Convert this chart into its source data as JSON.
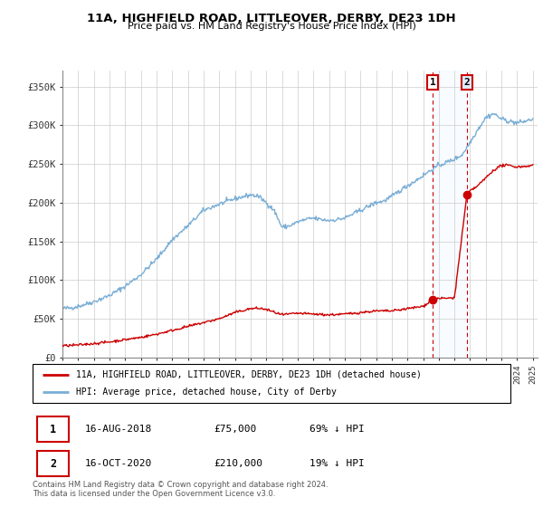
{
  "title": "11A, HIGHFIELD ROAD, LITTLEOVER, DERBY, DE23 1DH",
  "subtitle": "Price paid vs. HM Land Registry's House Price Index (HPI)",
  "ylabel_ticks": [
    "£0",
    "£50K",
    "£100K",
    "£150K",
    "£200K",
    "£250K",
    "£300K",
    "£350K"
  ],
  "ytick_values": [
    0,
    50000,
    100000,
    150000,
    200000,
    250000,
    300000,
    350000
  ],
  "ylim": [
    0,
    370000
  ],
  "hpi_color": "#7aaed6",
  "price_color": "#cc0000",
  "marker_color": "#cc0000",
  "shade_color": "#ddeeff",
  "legend_label_price": "11A, HIGHFIELD ROAD, LITTLEOVER, DERBY, DE23 1DH (detached house)",
  "legend_label_hpi": "HPI: Average price, detached house, City of Derby",
  "transaction1_date": "16-AUG-2018",
  "transaction1_price": "£75,000",
  "transaction1_pct": "69% ↓ HPI",
  "transaction1_year": 2018.625,
  "transaction1_value": 75000,
  "transaction2_date": "16-OCT-2020",
  "transaction2_price": "£210,000",
  "transaction2_pct": "19% ↓ HPI",
  "transaction2_year": 2020.792,
  "transaction2_value": 210000,
  "footnote": "Contains HM Land Registry data © Crown copyright and database right 2024.\nThis data is licensed under the Open Government Licence v3.0.",
  "hpi_manual_years": [
    1995,
    1995.5,
    1996,
    1997,
    1998,
    1999,
    2000,
    2001,
    2002,
    2003,
    2004,
    2005,
    2006,
    2007,
    2007.5,
    2008,
    2008.5,
    2009,
    2009.5,
    2010,
    2010.5,
    2011,
    2011.5,
    2012,
    2012.5,
    2013,
    2013.5,
    2014,
    2014.5,
    2015,
    2015.5,
    2016,
    2016.5,
    2017,
    2017.5,
    2018,
    2018.5,
    2019,
    2019.5,
    2020,
    2020.5,
    2021,
    2021.5,
    2022,
    2022.5,
    2023,
    2023.5,
    2024,
    2024.5,
    2025
  ],
  "hpi_manual_vals": [
    63000,
    64000,
    66000,
    72000,
    80000,
    92000,
    107000,
    127000,
    152000,
    170000,
    190000,
    198000,
    205000,
    210000,
    208000,
    200000,
    190000,
    168000,
    170000,
    175000,
    178000,
    180000,
    178000,
    177000,
    178000,
    180000,
    185000,
    190000,
    195000,
    200000,
    202000,
    208000,
    215000,
    222000,
    228000,
    235000,
    242000,
    248000,
    252000,
    256000,
    262000,
    278000,
    295000,
    310000,
    315000,
    308000,
    305000,
    303000,
    305000,
    308000
  ],
  "red_manual_years": [
    1995,
    1996,
    1997,
    1998,
    1999,
    2000,
    2001,
    2002,
    2003,
    2004,
    2005,
    2006,
    2007,
    2007.5,
    2008,
    2009,
    2010,
    2011,
    2012,
    2013,
    2014,
    2015,
    2016,
    2017,
    2018,
    2018.62,
    2018.63,
    2019,
    2019.5,
    2020,
    2020.79,
    2020.8,
    2021,
    2021.5,
    2022,
    2022.5,
    2023,
    2023.5,
    2024,
    2025
  ],
  "red_manual_vals": [
    15000,
    16000,
    18000,
    20000,
    23000,
    26000,
    30000,
    35000,
    40000,
    45000,
    50000,
    58000,
    63000,
    63500,
    62000,
    55000,
    57000,
    56000,
    55000,
    56000,
    58000,
    60000,
    60000,
    63000,
    66000,
    75000,
    75000,
    76000,
    76500,
    77000,
    210000,
    210000,
    215000,
    222000,
    232000,
    242000,
    248000,
    248000,
    246000,
    248000
  ]
}
